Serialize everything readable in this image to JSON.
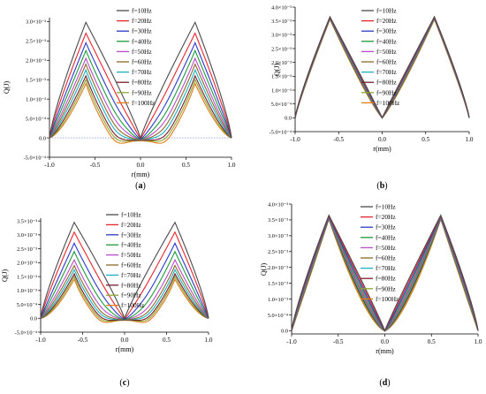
{
  "chart_data": [
    {
      "type": "line",
      "panel_label": "(a)",
      "xlabel": "r(mm)",
      "ylabel": "Q(J)",
      "xlim": [
        -1.0,
        1.0
      ],
      "ylim": [
        -0.0005,
        0.0031
      ],
      "x_ticks": [
        {
          "v": -1.0,
          "label": "-1.0"
        },
        {
          "v": -0.5,
          "label": "-0.5"
        },
        {
          "v": 0.0,
          "label": "0.0"
        },
        {
          "v": 0.5,
          "label": "0.5"
        },
        {
          "v": 1.0,
          "label": "1.0"
        }
      ],
      "y_ticks": [
        {
          "v": -0.0005,
          "label": "-5.0×10⁻⁴"
        },
        {
          "v": 0.0,
          "label": "0.0"
        },
        {
          "v": 0.0005,
          "label": "5.0×10⁻⁴"
        },
        {
          "v": 0.001,
          "label": "1.0×10⁻³"
        },
        {
          "v": 0.0015,
          "label": "1.5×10⁻³"
        },
        {
          "v": 0.002,
          "label": "2.0×10⁻³"
        },
        {
          "v": 0.0025,
          "label": "2.5×10⁻³"
        },
        {
          "v": 0.003,
          "label": "3.0×10⁻³"
        }
      ],
      "zero_reference_line": true,
      "peak_x": 0.6,
      "legend_position": "top-center",
      "series": [
        {
          "name": "f=10Hz",
          "peak": 0.00298,
          "edge": 0.0,
          "center": -1e-05,
          "dip": 0.0,
          "shape": 0.9
        },
        {
          "name": "f=20Hz",
          "peak": 0.0027,
          "edge": 0.0,
          "center": -2e-05,
          "dip": -2e-05,
          "shape": 1.05
        },
        {
          "name": "f=30Hz",
          "peak": 0.00245,
          "edge": 0.0,
          "center": -3e-05,
          "dip": -4e-05,
          "shape": 1.25
        },
        {
          "name": "f=40Hz",
          "peak": 0.00225,
          "edge": 0.0,
          "center": -4e-05,
          "dip": -6e-05,
          "shape": 1.45
        },
        {
          "name": "f=50Hz",
          "peak": 0.00205,
          "edge": 0.0,
          "center": -4e-05,
          "dip": -8e-05,
          "shape": 1.65
        },
        {
          "name": "f=60Hz",
          "peak": 0.0019,
          "edge": 0.0,
          "center": -5e-05,
          "dip": -0.0001,
          "shape": 1.85
        },
        {
          "name": "f=70Hz",
          "peak": 0.00175,
          "edge": 0.0,
          "center": -5e-05,
          "dip": -0.00012,
          "shape": 2.05
        },
        {
          "name": "f=80Hz",
          "peak": 0.0016,
          "edge": 0.0,
          "center": -6e-05,
          "dip": -0.00014,
          "shape": 2.3
        },
        {
          "name": "f=90Hz",
          "peak": 0.0015,
          "edge": 0.0,
          "center": -6e-05,
          "dip": -0.00016,
          "shape": 2.55
        },
        {
          "name": "f=100Hz",
          "peak": 0.0014,
          "edge": 0.0,
          "center": -7e-05,
          "dip": -0.00018,
          "shape": 2.8
        }
      ]
    },
    {
      "type": "line",
      "panel_label": "(b)",
      "xlabel": "r(mm)",
      "ylabel": "Q(J)",
      "xlim": [
        -1.0,
        1.0
      ],
      "ylim": [
        -0.0005,
        0.004
      ],
      "x_ticks": [
        {
          "v": -1.0,
          "label": "-1.0"
        },
        {
          "v": -0.5,
          "label": "-0.5"
        },
        {
          "v": 0.0,
          "label": "0.0"
        },
        {
          "v": 0.5,
          "label": "0.5"
        },
        {
          "v": 1.0,
          "label": "1.0"
        }
      ],
      "y_ticks": [
        {
          "v": -0.0005,
          "label": "-5.0×10⁻⁴"
        },
        {
          "v": 0.0,
          "label": "0.0"
        },
        {
          "v": 0.0005,
          "label": "5.0×10⁻⁴"
        },
        {
          "v": 0.001,
          "label": "1.0×10⁻³"
        },
        {
          "v": 0.0015,
          "label": "1.5×10⁻³"
        },
        {
          "v": 0.002,
          "label": "2.0×10⁻³"
        },
        {
          "v": 0.0025,
          "label": "2.5×10⁻³"
        },
        {
          "v": 0.003,
          "label": "3.0×10⁻³"
        },
        {
          "v": 0.0035,
          "label": "3.5×10⁻³"
        },
        {
          "v": 0.004,
          "label": "4.0×10⁻³"
        }
      ],
      "zero_reference_line": false,
      "peak_x": 0.6,
      "legend_position": "top-center",
      "series": [
        {
          "name": "f=10Hz",
          "peak": 0.00365,
          "edge": 0.0,
          "center": 0.0,
          "dip": 0.0,
          "shape": 0.98
        },
        {
          "name": "f=20Hz",
          "peak": 0.00364,
          "edge": 0.0,
          "center": 0.0,
          "dip": 0.0,
          "shape": 1.0
        },
        {
          "name": "f=30Hz",
          "peak": 0.00363,
          "edge": 0.0,
          "center": 0.0,
          "dip": 0.0,
          "shape": 1.02
        },
        {
          "name": "f=40Hz",
          "peak": 0.00362,
          "edge": 0.0,
          "center": 0.0,
          "dip": 0.0,
          "shape": 1.04
        },
        {
          "name": "f=50Hz",
          "peak": 0.00361,
          "edge": 0.0,
          "center": 0.0,
          "dip": 0.0,
          "shape": 1.06
        },
        {
          "name": "f=60Hz",
          "peak": 0.0036,
          "edge": 0.0,
          "center": 0.0,
          "dip": 0.0,
          "shape": 1.08
        },
        {
          "name": "f=70Hz",
          "peak": 0.00359,
          "edge": 0.0,
          "center": 0.0,
          "dip": 0.0,
          "shape": 1.1
        },
        {
          "name": "f=80Hz",
          "peak": 0.00358,
          "edge": 0.0,
          "center": 0.0,
          "dip": 0.0,
          "shape": 1.12
        },
        {
          "name": "f=90Hz",
          "peak": 0.00357,
          "edge": 0.0,
          "center": 0.0,
          "dip": 0.0,
          "shape": 1.14
        },
        {
          "name": "f=100Hz",
          "peak": 0.00355,
          "edge": 0.0,
          "center": 0.0,
          "dip": 0.0,
          "shape": 1.16
        }
      ]
    },
    {
      "type": "line",
      "panel_label": "(c)",
      "xlabel": "r(mm)",
      "ylabel": "Q(J)",
      "xlim": [
        -1.0,
        1.0
      ],
      "ylim": [
        -0.0005,
        0.0036
      ],
      "x_ticks": [
        {
          "v": -1.0,
          "label": "-1.0"
        },
        {
          "v": -0.5,
          "label": "-0.5"
        },
        {
          "v": 0.0,
          "label": "0.0"
        },
        {
          "v": 0.5,
          "label": "0.5"
        },
        {
          "v": 1.0,
          "label": "1.0"
        }
      ],
      "y_ticks": [
        {
          "v": -0.0005,
          "label": "-5.0×10⁻⁴"
        },
        {
          "v": 0.0,
          "label": "0.0"
        },
        {
          "v": 0.0005,
          "label": "5.0×10⁻⁴"
        },
        {
          "v": 0.001,
          "label": "1.0×10⁻³"
        },
        {
          "v": 0.0015,
          "label": "1.5×10⁻³"
        },
        {
          "v": 0.002,
          "label": "2.0×10⁻³"
        },
        {
          "v": 0.0025,
          "label": "2.5×10⁻³"
        },
        {
          "v": 0.003,
          "label": "3.0×10⁻³"
        },
        {
          "v": 0.0035,
          "label": "3.5×10⁻³"
        }
      ],
      "zero_reference_line": false,
      "peak_x": 0.6,
      "legend_position": "top-center",
      "series": [
        {
          "name": "f=10Hz",
          "peak": 0.00345,
          "edge": 0.0,
          "center": -1e-05,
          "dip": 0.0,
          "shape": 0.9
        },
        {
          "name": "f=20Hz",
          "peak": 0.0031,
          "edge": 0.0,
          "center": -2e-05,
          "dip": -2e-05,
          "shape": 1.1
        },
        {
          "name": "f=30Hz",
          "peak": 0.0027,
          "edge": 0.0,
          "center": -3e-05,
          "dip": -4e-05,
          "shape": 1.35
        },
        {
          "name": "f=40Hz",
          "peak": 0.0024,
          "edge": 0.0,
          "center": -4e-05,
          "dip": -6e-05,
          "shape": 1.6
        },
        {
          "name": "f=50Hz",
          "peak": 0.0021,
          "edge": 0.0,
          "center": -4e-05,
          "dip": -8e-05,
          "shape": 1.85
        },
        {
          "name": "f=60Hz",
          "peak": 0.0019,
          "edge": 0.0,
          "center": -5e-05,
          "dip": -0.0001,
          "shape": 2.1
        },
        {
          "name": "f=70Hz",
          "peak": 0.00175,
          "edge": 0.0,
          "center": -5e-05,
          "dip": -0.00011,
          "shape": 2.35
        },
        {
          "name": "f=80Hz",
          "peak": 0.0016,
          "edge": 0.0,
          "center": -6e-05,
          "dip": -0.00013,
          "shape": 2.6
        },
        {
          "name": "f=90Hz",
          "peak": 0.0015,
          "edge": 0.0,
          "center": -6e-05,
          "dip": -0.00015,
          "shape": 2.85
        },
        {
          "name": "f=100Hz",
          "peak": 0.0014,
          "edge": 0.0,
          "center": -7e-05,
          "dip": -0.00017,
          "shape": 3.1
        }
      ]
    },
    {
      "type": "line",
      "panel_label": "(d)",
      "xlabel": "r(mm)",
      "ylabel": "Q(J)",
      "xlim": [
        -1.0,
        1.0
      ],
      "ylim": [
        -0.0001,
        0.004
      ],
      "x_ticks": [
        {
          "v": -1.0,
          "label": "-1.0"
        },
        {
          "v": -0.5,
          "label": "-0.5"
        },
        {
          "v": 0.0,
          "label": "0.0"
        },
        {
          "v": 0.5,
          "label": "0.5"
        },
        {
          "v": 1.0,
          "label": "1.0"
        }
      ],
      "y_ticks": [
        {
          "v": 0.0,
          "label": "0.0"
        },
        {
          "v": 0.0005,
          "label": "5.0×10⁻⁴"
        },
        {
          "v": 0.001,
          "label": "1.0×10⁻³"
        },
        {
          "v": 0.0015,
          "label": "1.5×10⁻³"
        },
        {
          "v": 0.002,
          "label": "2.0×10⁻³"
        },
        {
          "v": 0.0025,
          "label": "2.5×10⁻³"
        },
        {
          "v": 0.003,
          "label": "3.0×10⁻³"
        },
        {
          "v": 0.0035,
          "label": "3.5×10⁻³"
        },
        {
          "v": 0.004,
          "label": "4.0×10⁻³"
        }
      ],
      "zero_reference_line": false,
      "peak_x": 0.6,
      "legend_position": "top-center",
      "series": [
        {
          "name": "f=10Hz",
          "peak": 0.00365,
          "edge": 0.0,
          "center": 0.0,
          "dip": 0.0,
          "shape": 0.95
        },
        {
          "name": "f=20Hz",
          "peak": 0.00363,
          "edge": 0.0,
          "center": 0.0,
          "dip": 0.0,
          "shape": 1.0
        },
        {
          "name": "f=30Hz",
          "peak": 0.00361,
          "edge": 0.0,
          "center": 0.0,
          "dip": 0.0,
          "shape": 1.06
        },
        {
          "name": "f=40Hz",
          "peak": 0.00359,
          "edge": 0.0,
          "center": 0.0,
          "dip": 0.0,
          "shape": 1.12
        },
        {
          "name": "f=50Hz",
          "peak": 0.00357,
          "edge": 0.0,
          "center": 0.0,
          "dip": 0.0,
          "shape": 1.18
        },
        {
          "name": "f=60Hz",
          "peak": 0.00356,
          "edge": 0.0,
          "center": 0.0,
          "dip": 0.0,
          "shape": 1.24
        },
        {
          "name": "f=70Hz",
          "peak": 0.00355,
          "edge": 0.0,
          "center": 0.0,
          "dip": 0.0,
          "shape": 1.3
        },
        {
          "name": "f=80Hz",
          "peak": 0.00354,
          "edge": 0.0,
          "center": 0.0,
          "dip": 0.0,
          "shape": 1.36
        },
        {
          "name": "f=90Hz",
          "peak": 0.00353,
          "edge": 0.0,
          "center": 0.0,
          "dip": 0.0,
          "shape": 1.42
        },
        {
          "name": "f=100Hz",
          "peak": 0.00352,
          "edge": 0.0,
          "center": 0.0,
          "dip": 0.0,
          "shape": 1.48
        }
      ]
    }
  ],
  "series_colors": [
    "#4a4a4a",
    "#e8252b",
    "#2c38c8",
    "#1f9a3a",
    "#b84cc8",
    "#8a6a2a",
    "#1ab0c0",
    "#7a1e2a",
    "#8aa830",
    "#e07a1a"
  ]
}
